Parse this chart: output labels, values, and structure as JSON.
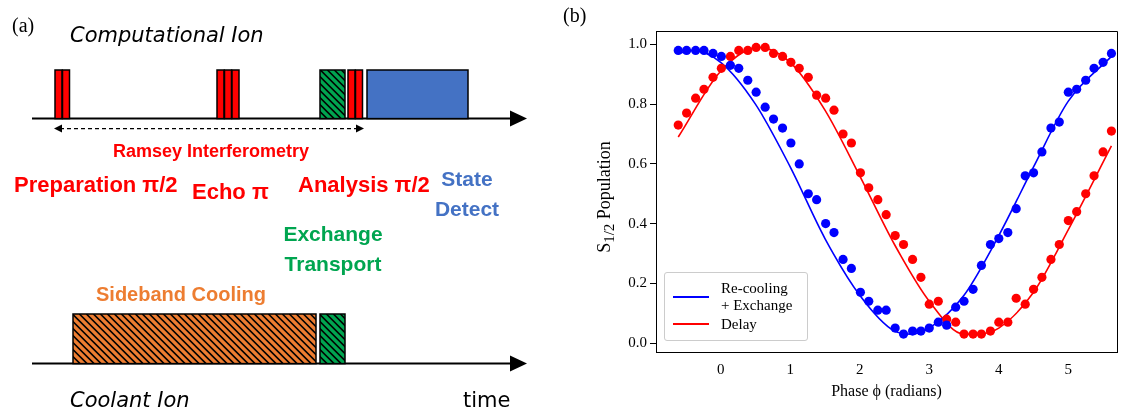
{
  "chart_data": [
    {
      "type": "other",
      "annotations": [
        "(a)",
        "Computational Ion",
        "Ramsey Interferometry",
        "Preparation π/2",
        "Echo π",
        "Analysis π/2",
        "State Detect",
        "Exchange Transport",
        "Sideband Cooling",
        "Coolant Ion",
        "time"
      ]
    },
    {
      "type": "scatter",
      "annotations": [
        "(b)"
      ],
      "xlabel": "Phase ϕ (radians)",
      "ylabel": "S$_{1/2}$ Population",
      "xlim": [
        -0.93,
        5.7
      ],
      "ylim": [
        -0.03,
        1.045
      ],
      "xticks": [
        0,
        1,
        2,
        3,
        4,
        5
      ],
      "yticks": [
        {
          "value": 0,
          "label": "0.0"
        },
        0.2,
        0.4,
        0.6,
        0.8,
        {
          "value": 1,
          "label": "1.0"
        }
      ],
      "grid": false,
      "legend": "bottom left",
      "series": [
        {
          "type": "scatter",
          "marker": "circle",
          "color": "#0000ff",
          "x": [
            -0.61,
            -0.49,
            -0.36,
            -0.24,
            -0.11,
            0.01,
            0.14,
            0.26,
            0.39,
            0.51,
            0.64,
            0.76,
            0.89,
            1.01,
            1.13,
            1.26,
            1.38,
            1.51,
            1.63,
            1.76,
            1.88,
            2.01,
            2.13,
            2.26,
            2.38,
            2.51,
            2.63,
            2.76,
            2.88,
            3.0,
            3.13,
            3.25,
            3.38,
            3.5,
            3.63,
            3.75,
            3.88,
            4.0,
            4.13,
            4.25,
            4.38,
            4.5,
            4.62,
            4.75,
            4.87,
            5.0,
            5.12,
            5.25,
            5.37,
            5.5,
            5.62
          ],
          "values": [
            0.98,
            0.98,
            0.98,
            0.98,
            0.97,
            0.96,
            0.93,
            0.92,
            0.88,
            0.84,
            0.79,
            0.75,
            0.72,
            0.67,
            0.6,
            0.5,
            0.48,
            0.4,
            0.37,
            0.28,
            0.25,
            0.17,
            0.14,
            0.11,
            0.11,
            0.05,
            0.03,
            0.04,
            0.04,
            0.05,
            0.07,
            0.06,
            0.12,
            0.14,
            0.18,
            0.26,
            0.33,
            0.35,
            0.37,
            0.45,
            0.56,
            0.57,
            0.64,
            0.72,
            0.74,
            0.84,
            0.85,
            0.88,
            0.92,
            0.94,
            0.97
          ]
        },
        {
          "type": "scatter",
          "marker": "circle",
          "color": "#ff0000",
          "x": [
            -0.61,
            -0.49,
            -0.36,
            -0.24,
            -0.11,
            0.01,
            0.14,
            0.26,
            0.39,
            0.51,
            0.64,
            0.76,
            0.89,
            1.01,
            1.13,
            1.26,
            1.38,
            1.51,
            1.63,
            1.76,
            1.88,
            2.01,
            2.13,
            2.26,
            2.38,
            2.51,
            2.63,
            2.76,
            2.88,
            3.0,
            3.13,
            3.25,
            3.38,
            3.5,
            3.63,
            3.75,
            3.88,
            4.0,
            4.13,
            4.25,
            4.38,
            4.5,
            4.62,
            4.75,
            4.87,
            5.0,
            5.12,
            5.25,
            5.37,
            5.5,
            5.62
          ],
          "values": [
            0.73,
            0.77,
            0.82,
            0.85,
            0.89,
            0.92,
            0.96,
            0.98,
            0.98,
            0.99,
            0.99,
            0.97,
            0.96,
            0.94,
            0.92,
            0.89,
            0.83,
            0.82,
            0.78,
            0.7,
            0.67,
            0.57,
            0.52,
            0.48,
            0.43,
            0.36,
            0.33,
            0.28,
            0.22,
            0.13,
            0.14,
            0.08,
            0.07,
            0.03,
            0.03,
            0.03,
            0.04,
            0.07,
            0.07,
            0.15,
            0.13,
            0.18,
            0.22,
            0.28,
            0.33,
            0.41,
            0.44,
            0.5,
            0.56,
            0.64,
            0.71
          ]
        },
        {
          "type": "line",
          "marker": "none",
          "name": "Re-cooling + Exchange",
          "color": "#0000ff",
          "x": [
            -0.61,
            -0.4,
            0,
            0.5,
            1,
            1.5,
            2,
            2.5,
            2.74,
            3,
            3.5,
            4,
            4.5,
            5,
            5.62
          ],
          "values": [
            0.97,
            0.98,
            0.94,
            0.8,
            0.59,
            0.35,
            0.16,
            0.04,
            0.03,
            0.05,
            0.16,
            0.36,
            0.59,
            0.81,
            0.96
          ]
        },
        {
          "type": "line",
          "marker": "none",
          "name": "Delay",
          "color": "#ff0000",
          "x": [
            -0.61,
            0,
            0.55,
            1,
            1.5,
            2,
            2.5,
            3,
            3.5,
            3.69,
            4,
            4.5,
            5,
            5.62
          ],
          "values": [
            0.69,
            0.91,
            0.99,
            0.94,
            0.78,
            0.56,
            0.33,
            0.14,
            0.03,
            0.03,
            0.05,
            0.17,
            0.38,
            0.66
          ]
        }
      ]
    }
  ]
}
